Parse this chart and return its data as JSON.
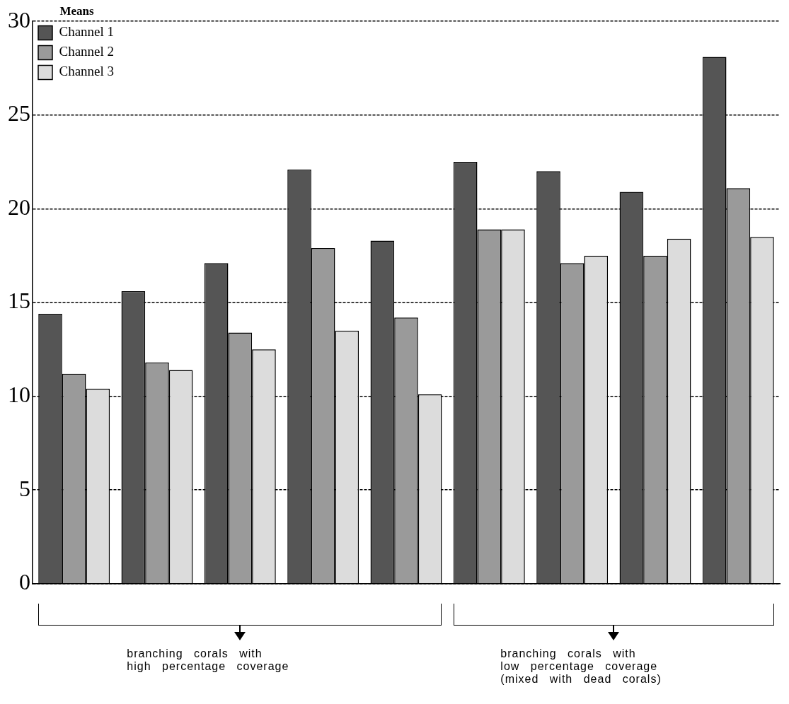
{
  "chart_data": {
    "type": "bar",
    "legend_title": "Means",
    "categories": [
      null,
      null,
      null,
      null,
      null,
      null,
      null,
      null,
      null
    ],
    "series": [
      {
        "name": "Channel 1",
        "color": "#555555",
        "values": [
          14.4,
          15.6,
          17.1,
          22.1,
          18.3,
          22.5,
          22.0,
          20.9,
          28.1
        ]
      },
      {
        "name": "Channel 2",
        "color": "#9a9a9a",
        "values": [
          11.2,
          11.8,
          13.4,
          17.9,
          14.2,
          18.9,
          17.1,
          17.5,
          21.1
        ]
      },
      {
        "name": "Channel 3",
        "color": "#dcdcdc",
        "values": [
          10.4,
          11.4,
          12.5,
          13.5,
          10.1,
          18.9,
          17.5,
          18.4,
          18.5
        ]
      }
    ],
    "ylim": [
      0,
      30
    ],
    "yticks": [
      0,
      5,
      10,
      15,
      20,
      25,
      30
    ],
    "grid": "y",
    "legend": "top left",
    "annotations": [
      "branching corals with\nhigh percentage coverage",
      "branching corals with\nlow percentage coverage\n(mixed with dead corals)"
    ]
  }
}
